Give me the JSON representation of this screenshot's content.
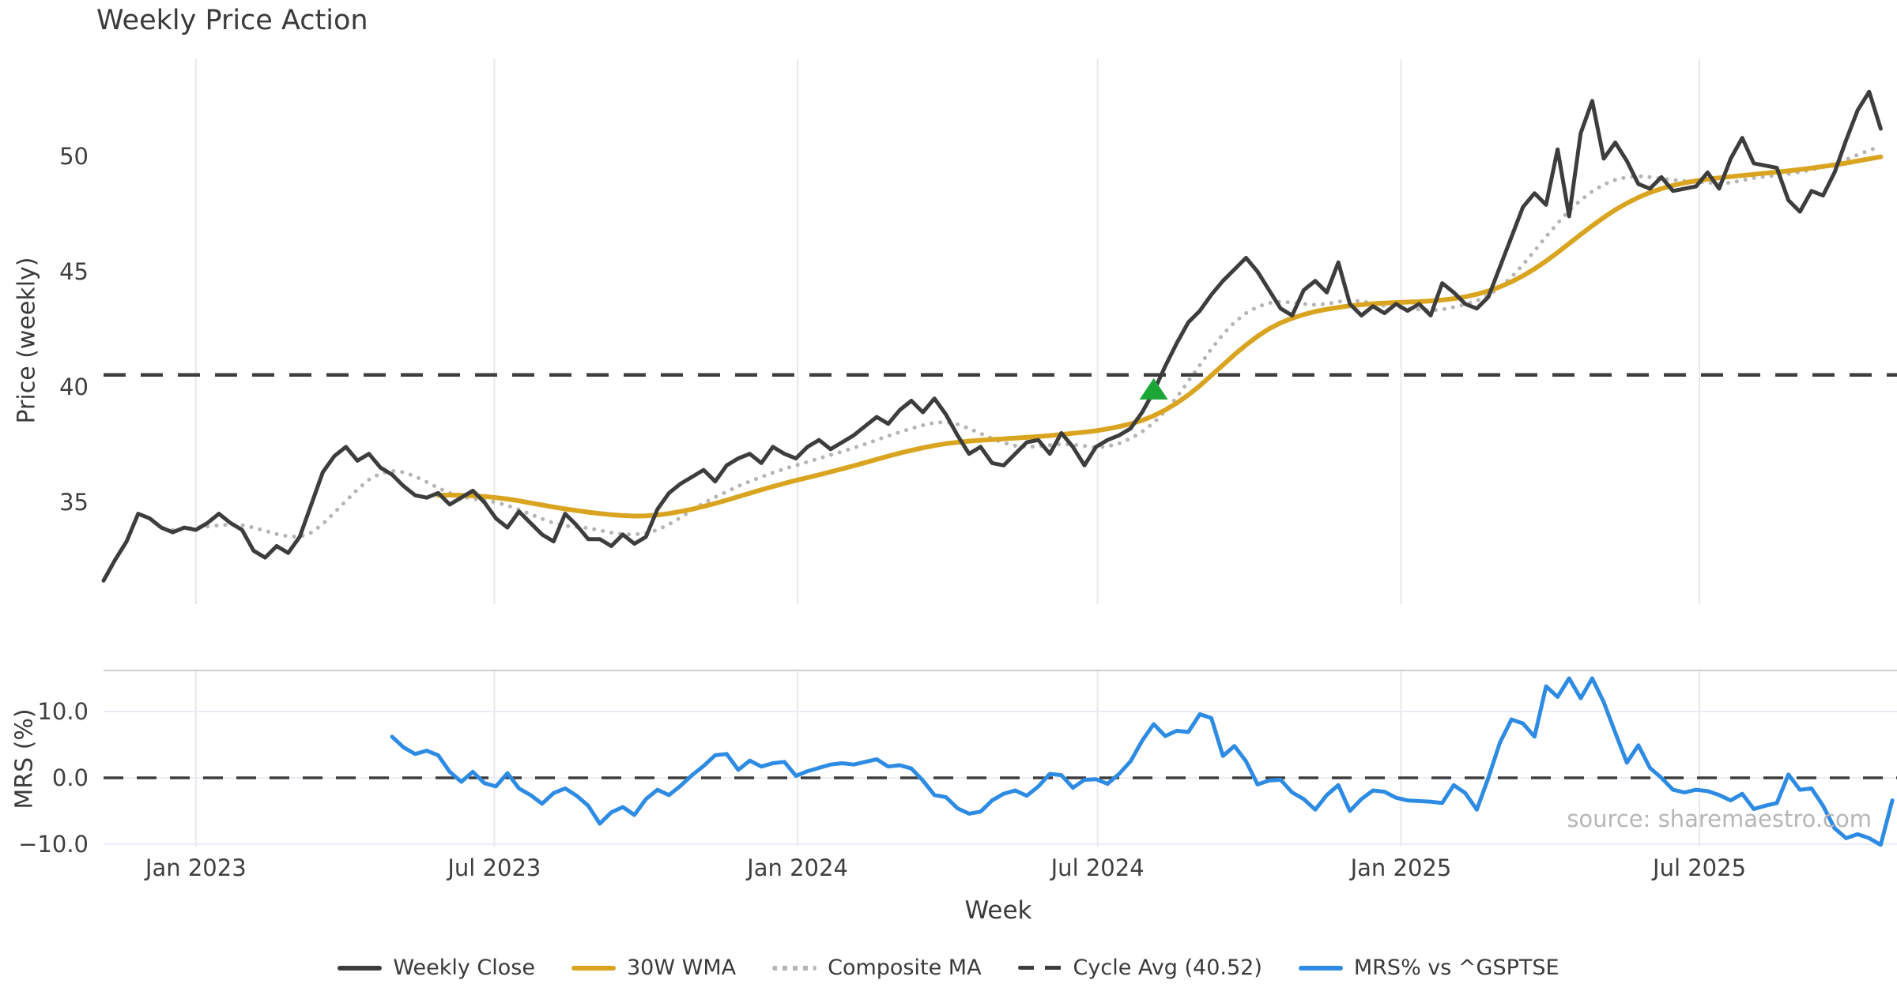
{
  "title": "Weekly Price Action",
  "watermark": "source: sharemaestro.com",
  "colors": {
    "close": "#3d3d3d",
    "wma": "#d9a41f",
    "composite": "#b5b5b5",
    "cycle_avg": "#3d3d3d",
    "mrs": "#2d8be4",
    "signal": "#1ba637",
    "gridline": "#e8e8e8",
    "gridline_mrs": "#e9edf4",
    "panel_border": "#cfcfcf",
    "text": "#3a3a3a"
  },
  "x_axis": {
    "label": "Week",
    "ticks": [
      {
        "label": "Jan 2023",
        "week": 8.0
      },
      {
        "label": "Jul 2023",
        "week": 33.86
      },
      {
        "label": "Jan 2024",
        "week": 60.14
      },
      {
        "label": "Jul 2024",
        "week": 86.14
      },
      {
        "label": "Jan 2025",
        "week": 112.43
      },
      {
        "label": "Jul 2025",
        "week": 138.29
      }
    ]
  },
  "legend": [
    {
      "label": "Weekly Close",
      "swatch": "solid",
      "color": "#3d3d3d"
    },
    {
      "label": "30W WMA",
      "swatch": "solid",
      "color": "#d9a41f"
    },
    {
      "label": "Composite MA",
      "swatch": "dotted",
      "color": "#b5b5b5"
    },
    {
      "label": "Cycle Avg (40.52)",
      "swatch": "dashed",
      "color": "#3d3d3d"
    },
    {
      "label": "MRS% vs ^GSPTSE",
      "swatch": "solid",
      "color": "#2d8be4"
    }
  ],
  "chart_data": [
    {
      "type": "line",
      "panel": "price",
      "ylabel": "Price (weekly)",
      "x_unit": "weeks since 2022-11-06",
      "ylim": [
        28.5,
        53.5
      ],
      "yticks": [
        {
          "label": "50",
          "value": 50
        },
        {
          "label": "45",
          "value": 45
        },
        {
          "label": "40",
          "value": 40
        },
        {
          "label": "35",
          "value": 35
        }
      ],
      "grid": "vertical-only",
      "series": [
        {
          "name": "Weekly Close",
          "style": "solid",
          "width": 5,
          "color_key": "close",
          "start_week": 0,
          "values": [
            31.6,
            32.5,
            33.3,
            34.5,
            34.3,
            33.9,
            33.7,
            33.9,
            33.8,
            34.1,
            34.5,
            34.1,
            33.8,
            32.9,
            32.6,
            33.1,
            32.8,
            33.5,
            34.9,
            36.3,
            37.0,
            37.4,
            36.8,
            37.1,
            36.5,
            36.2,
            35.7,
            35.3,
            35.2,
            35.4,
            34.9,
            35.2,
            35.5,
            35.0,
            34.3,
            33.9,
            34.6,
            34.1,
            33.6,
            33.3,
            34.5,
            34.0,
            33.4,
            33.4,
            33.1,
            33.6,
            33.2,
            33.5,
            34.7,
            35.4,
            35.8,
            36.1,
            36.4,
            35.9,
            36.6,
            36.9,
            37.1,
            36.7,
            37.4,
            37.1,
            36.9,
            37.4,
            37.7,
            37.3,
            37.6,
            37.9,
            38.3,
            38.7,
            38.4,
            39.0,
            39.4,
            38.9,
            39.5,
            38.8,
            37.9,
            37.1,
            37.4,
            36.7,
            36.6,
            37.1,
            37.6,
            37.7,
            37.1,
            38.0,
            37.4,
            36.6,
            37.4,
            37.7,
            37.9,
            38.2,
            38.9,
            39.8,
            40.9,
            41.9,
            42.8,
            43.3,
            44.0,
            44.6,
            45.1,
            45.6,
            45.0,
            44.2,
            43.4,
            43.1,
            44.2,
            44.6,
            44.1,
            45.4,
            43.6,
            43.1,
            43.5,
            43.2,
            43.6,
            43.3,
            43.6,
            43.1,
            44.5,
            44.1,
            43.6,
            43.4,
            43.9,
            45.2,
            46.5,
            47.8,
            48.4,
            47.9,
            50.3,
            47.4,
            51.0,
            52.4,
            49.9,
            50.6,
            49.8,
            48.8,
            48.6,
            49.1,
            48.5,
            48.6,
            48.7,
            49.3,
            48.6,
            49.9,
            50.8,
            49.7,
            49.6,
            49.5,
            48.1,
            47.6,
            48.5,
            48.3,
            49.3,
            50.7,
            52.0,
            52.8,
            51.2
          ]
        },
        {
          "name": "30W WMA",
          "style": "solid",
          "width": 6,
          "color_key": "wma",
          "start_week": 29,
          "values": [
            35.3,
            35.31,
            35.3,
            35.28,
            35.25,
            35.2,
            35.14,
            35.06,
            34.97,
            34.88,
            34.79,
            34.71,
            34.64,
            34.57,
            34.51,
            34.46,
            34.42,
            34.4,
            34.41,
            34.45,
            34.51,
            34.6,
            34.7,
            34.82,
            34.95,
            35.09,
            35.24,
            35.39,
            35.54,
            35.68,
            35.82,
            35.95,
            36.07,
            36.19,
            36.32,
            36.45,
            36.58,
            36.72,
            36.86,
            37.0,
            37.13,
            37.25,
            37.36,
            37.46,
            37.54,
            37.6,
            37.65,
            37.69,
            37.72,
            37.75,
            37.78,
            37.81,
            37.85,
            37.89,
            37.94,
            37.99,
            38.04,
            38.1,
            38.18,
            38.28,
            38.4,
            38.55,
            38.75,
            39.0,
            39.3,
            39.65,
            40.05,
            40.5,
            40.95,
            41.4,
            41.82,
            42.2,
            42.52,
            42.78,
            42.98,
            43.14,
            43.27,
            43.37,
            43.45,
            43.52,
            43.57,
            43.61,
            43.64,
            43.66,
            43.68,
            43.7,
            43.73,
            43.77,
            43.83,
            43.91,
            44.02,
            44.16,
            44.34,
            44.56,
            44.82,
            45.12,
            45.46,
            45.83,
            46.22,
            46.61,
            46.99,
            47.35,
            47.68,
            47.97,
            48.22,
            48.43,
            48.6,
            48.74,
            48.85,
            48.94,
            49.01,
            49.07,
            49.12,
            49.17,
            49.22,
            49.27,
            49.32,
            49.37,
            49.43,
            49.49,
            49.56,
            49.63,
            49.71,
            49.8,
            49.89,
            49.98
          ]
        },
        {
          "name": "Composite MA",
          "style": "dotted",
          "width": 5,
          "color_key": "composite",
          "start_week": 6,
          "values": [
            33.8,
            33.85,
            33.9,
            33.95,
            34.0,
            34.03,
            34.0,
            33.9,
            33.76,
            33.62,
            33.52,
            33.5,
            33.68,
            34.05,
            34.55,
            35.05,
            35.55,
            35.98,
            36.25,
            36.36,
            36.3,
            36.12,
            35.88,
            35.62,
            35.4,
            35.25,
            35.15,
            35.08,
            35.0,
            34.86,
            34.68,
            34.48,
            34.28,
            34.1,
            33.98,
            33.92,
            33.88,
            33.78,
            33.68,
            33.62,
            33.6,
            33.66,
            33.8,
            34.04,
            34.34,
            34.66,
            34.96,
            35.22,
            35.46,
            35.7,
            35.9,
            36.1,
            36.28,
            36.45,
            36.6,
            36.75,
            36.9,
            37.05,
            37.2,
            37.36,
            37.52,
            37.7,
            37.88,
            38.04,
            38.2,
            38.34,
            38.45,
            38.48,
            38.38,
            38.2,
            37.98,
            37.76,
            37.58,
            37.45,
            37.4,
            37.42,
            37.48,
            37.52,
            37.5,
            37.44,
            37.38,
            37.42,
            37.55,
            37.76,
            38.06,
            38.45,
            38.95,
            39.55,
            40.25,
            40.95,
            41.65,
            42.28,
            42.8,
            43.2,
            43.48,
            43.64,
            43.7,
            43.66,
            43.6,
            43.56,
            43.6,
            43.7,
            43.76,
            43.72,
            43.62,
            43.52,
            43.46,
            43.4,
            43.36,
            43.32,
            43.36,
            43.46,
            43.58,
            43.74,
            43.98,
            44.32,
            44.76,
            45.3,
            45.9,
            46.52,
            47.1,
            47.64,
            48.1,
            48.48,
            48.78,
            48.98,
            49.1,
            49.14,
            49.1,
            49.04,
            48.98,
            48.93,
            48.9,
            48.86,
            48.82,
            48.86,
            48.96,
            49.06,
            49.12,
            49.18,
            49.24,
            49.32,
            49.42,
            49.54,
            49.68,
            49.86,
            50.06,
            50.26,
            50.44
          ]
        },
        {
          "name": "Cycle Avg",
          "style": "dashed-hline",
          "width": 4.5,
          "color_key": "cycle_avg",
          "value": 40.52
        }
      ],
      "signal_marker": {
        "shape": "triangle-up",
        "week": 91,
        "price": 39.9,
        "color_key": "signal"
      }
    },
    {
      "type": "line",
      "panel": "mrs",
      "ylabel": "MRS (%)",
      "ylim": [
        -10.8,
        16.2
      ],
      "yticks": [
        {
          "label": "10.0",
          "value": 10
        },
        {
          "label": "0.0",
          "value": 0
        },
        {
          "label": "−10.0",
          "value": -10
        }
      ],
      "zero_line_dashed": true,
      "series": [
        {
          "name": "MRS% vs ^GSPTSE",
          "style": "solid",
          "width": 5,
          "color_key": "mrs",
          "start_week": 25,
          "values": [
            6.2,
            4.6,
            3.6,
            4.1,
            3.4,
            0.9,
            -0.6,
            0.9,
            -0.8,
            -1.3,
            0.7,
            -1.6,
            -2.6,
            -3.9,
            -2.3,
            -1.6,
            -2.7,
            -4.2,
            -6.9,
            -5.2,
            -4.4,
            -5.6,
            -3.2,
            -1.8,
            -2.6,
            -1.2,
            0.4,
            1.8,
            3.4,
            3.6,
            1.2,
            2.6,
            1.7,
            2.2,
            2.4,
            0.3,
            1.0,
            1.5,
            2.0,
            2.2,
            2.0,
            2.4,
            2.8,
            1.7,
            1.9,
            1.4,
            -0.4,
            -2.6,
            -2.9,
            -4.6,
            -5.4,
            -5.1,
            -3.4,
            -2.4,
            -1.9,
            -2.7,
            -1.3,
            0.6,
            0.4,
            -1.5,
            -0.3,
            -0.2,
            -0.9,
            0.6,
            2.5,
            5.6,
            8.1,
            6.3,
            7.1,
            6.9,
            9.6,
            9.0,
            3.3,
            4.8,
            2.5,
            -1.0,
            -0.4,
            -0.3,
            -2.2,
            -3.2,
            -4.8,
            -2.6,
            -1.1,
            -5.0,
            -3.2,
            -1.9,
            -2.1,
            -3.0,
            -3.4,
            -3.5,
            -3.6,
            -3.8,
            -1.1,
            -2.3,
            -4.8,
            0.0,
            5.3,
            8.8,
            8.2,
            6.2,
            13.8,
            12.2,
            15.0,
            12.0,
            15.0,
            11.4,
            6.8,
            2.3,
            4.9,
            1.5,
            0.0,
            -1.8,
            -2.2,
            -1.8,
            -2.0,
            -2.6,
            -3.4,
            -2.4,
            -4.7,
            -4.2,
            -3.8,
            0.5,
            -1.8,
            -1.6,
            -4.2,
            -7.6,
            -9.1,
            -8.5,
            -9.1,
            -10.1,
            -3.4
          ]
        }
      ]
    }
  ]
}
